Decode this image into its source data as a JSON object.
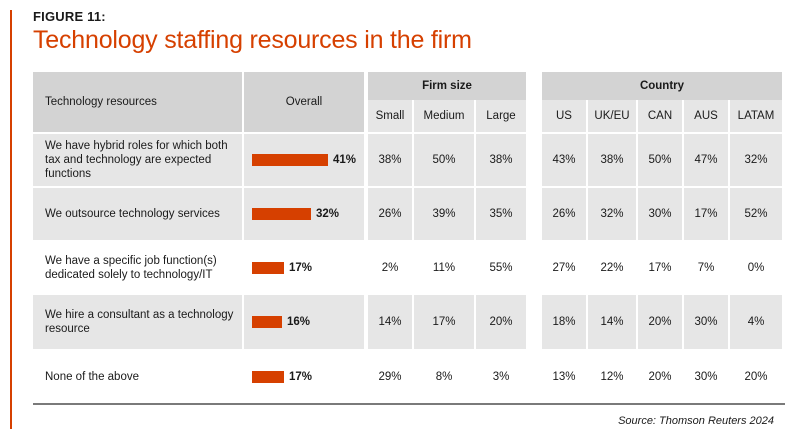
{
  "figure_label": "FIGURE 11:",
  "title": "Technology staffing resources in the firm",
  "source": "Source: Thomson Reuters 2024",
  "colors": {
    "accent": "#d64000",
    "row_band": "#e6e6e6",
    "header_band": "#d3d3d3"
  },
  "chart_data": {
    "type": "table",
    "title": "Technology staffing resources in the firm",
    "row_header": "Technology resources",
    "overall_header": "Overall",
    "groups": [
      {
        "name": "Firm size",
        "columns": [
          "Small",
          "Medium",
          "Large"
        ]
      },
      {
        "name": "Country",
        "columns": [
          "US",
          "UK/EU",
          "CAN",
          "AUS",
          "LATAM"
        ]
      }
    ],
    "overall_max": 41,
    "rows": [
      {
        "label": "We have hybrid roles for which both tax and technology are expected functions",
        "overall": 41,
        "overall_label": "41%",
        "values": [
          "38%",
          "50%",
          "38%",
          "43%",
          "38%",
          "50%",
          "47%",
          "32%"
        ]
      },
      {
        "label": "We outsource technology services",
        "overall": 32,
        "overall_label": "32%",
        "values": [
          "26%",
          "39%",
          "35%",
          "26%",
          "32%",
          "30%",
          "17%",
          "52%"
        ]
      },
      {
        "label": "We have a specific job function(s) dedicated solely to technology/IT",
        "overall": 17,
        "overall_label": "17%",
        "values": [
          "2%",
          "11%",
          "55%",
          "27%",
          "22%",
          "17%",
          "7%",
          "0%"
        ]
      },
      {
        "label": "We hire a consultant as a technology resource",
        "overall": 16,
        "overall_label": "16%",
        "values": [
          "14%",
          "17%",
          "20%",
          "18%",
          "14%",
          "20%",
          "30%",
          "4%"
        ]
      },
      {
        "label": "None of the above",
        "overall": 17,
        "overall_label": "17%",
        "values": [
          "29%",
          "8%",
          "3%",
          "13%",
          "12%",
          "20%",
          "30%",
          "20%"
        ]
      }
    ]
  }
}
